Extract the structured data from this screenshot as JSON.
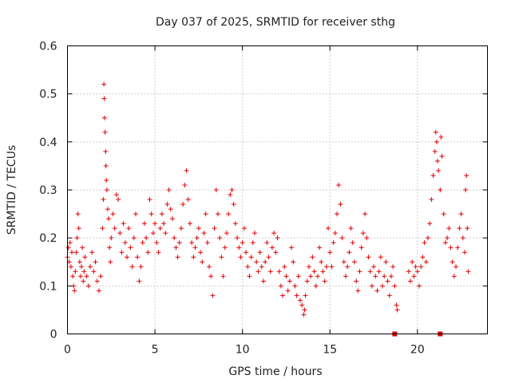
{
  "chart_data": {
    "type": "scatter",
    "title": "Day 037 of 2025, SRMTID for receiver sthg",
    "xlabel": "GPS time / hours",
    "ylabel": "SRMTID / TECUs",
    "xlim": [
      0,
      24
    ],
    "ylim": [
      0,
      0.6
    ],
    "xticks": [
      0,
      5,
      10,
      15,
      20
    ],
    "xtick_labels": [
      "0",
      "5",
      "10",
      "15",
      "20"
    ],
    "yticks": [
      0,
      0.1,
      0.2,
      0.3,
      0.4,
      0.5,
      0.6
    ],
    "ytick_labels": [
      "0",
      "0.1",
      "0.2",
      "0.3",
      "0.4",
      "0.5",
      "0.6"
    ],
    "grid": true,
    "marker": "+",
    "color": "#e00000",
    "gap_markers": {
      "x": [
        18.7,
        21.3
      ],
      "y": 0
    },
    "series": [
      {
        "name": "SRMTID",
        "points": [
          [
            0.0,
            0.16
          ],
          [
            0.05,
            0.18
          ],
          [
            0.1,
            0.15
          ],
          [
            0.15,
            0.19
          ],
          [
            0.2,
            0.14
          ],
          [
            0.25,
            0.17
          ],
          [
            0.3,
            0.12
          ],
          [
            0.35,
            0.1
          ],
          [
            0.4,
            0.09
          ],
          [
            0.45,
            0.13
          ],
          [
            0.5,
            0.17
          ],
          [
            0.55,
            0.2
          ],
          [
            0.6,
            0.25
          ],
          [
            0.65,
            0.22
          ],
          [
            0.7,
            0.15
          ],
          [
            0.75,
            0.12
          ],
          [
            0.8,
            0.14
          ],
          [
            0.85,
            0.18
          ],
          [
            0.9,
            0.11
          ],
          [
            0.95,
            0.13
          ],
          [
            1.0,
            0.16
          ],
          [
            1.1,
            0.12
          ],
          [
            1.2,
            0.1
          ],
          [
            1.3,
            0.14
          ],
          [
            1.4,
            0.17
          ],
          [
            1.5,
            0.13
          ],
          [
            1.6,
            0.15
          ],
          [
            1.7,
            0.11
          ],
          [
            1.8,
            0.09
          ],
          [
            1.9,
            0.12
          ],
          [
            2.0,
            0.22
          ],
          [
            2.05,
            0.28
          ],
          [
            2.08,
            0.52
          ],
          [
            2.1,
            0.49
          ],
          [
            2.12,
            0.45
          ],
          [
            2.15,
            0.42
          ],
          [
            2.18,
            0.38
          ],
          [
            2.2,
            0.35
          ],
          [
            2.22,
            0.32
          ],
          [
            2.25,
            0.3
          ],
          [
            2.3,
            0.26
          ],
          [
            2.35,
            0.24
          ],
          [
            2.4,
            0.18
          ],
          [
            2.45,
            0.15
          ],
          [
            2.5,
            0.2
          ],
          [
            2.6,
            0.25
          ],
          [
            2.7,
            0.22
          ],
          [
            2.8,
            0.29
          ],
          [
            2.9,
            0.28
          ],
          [
            3.0,
            0.21
          ],
          [
            3.1,
            0.17
          ],
          [
            3.2,
            0.23
          ],
          [
            3.3,
            0.19
          ],
          [
            3.4,
            0.16
          ],
          [
            3.5,
            0.22
          ],
          [
            3.6,
            0.18
          ],
          [
            3.7,
            0.14
          ],
          [
            3.8,
            0.2
          ],
          [
            3.9,
            0.25
          ],
          [
            4.0,
            0.16
          ],
          [
            4.1,
            0.11
          ],
          [
            4.2,
            0.14
          ],
          [
            4.3,
            0.19
          ],
          [
            4.4,
            0.23
          ],
          [
            4.5,
            0.2
          ],
          [
            4.6,
            0.17
          ],
          [
            4.7,
            0.28
          ],
          [
            4.8,
            0.25
          ],
          [
            4.9,
            0.21
          ],
          [
            5.0,
            0.23
          ],
          [
            5.1,
            0.19
          ],
          [
            5.2,
            0.17
          ],
          [
            5.3,
            0.22
          ],
          [
            5.4,
            0.25
          ],
          [
            5.5,
            0.23
          ],
          [
            5.6,
            0.21
          ],
          [
            5.7,
            0.27
          ],
          [
            5.8,
            0.3
          ],
          [
            5.9,
            0.26
          ],
          [
            6.0,
            0.24
          ],
          [
            6.1,
            0.2
          ],
          [
            6.2,
            0.18
          ],
          [
            6.3,
            0.16
          ],
          [
            6.4,
            0.19
          ],
          [
            6.5,
            0.22
          ],
          [
            6.6,
            0.27
          ],
          [
            6.7,
            0.31
          ],
          [
            6.8,
            0.34
          ],
          [
            6.9,
            0.28
          ],
          [
            7.0,
            0.23
          ],
          [
            7.1,
            0.19
          ],
          [
            7.2,
            0.16
          ],
          [
            7.3,
            0.18
          ],
          [
            7.4,
            0.2
          ],
          [
            7.5,
            0.22
          ],
          [
            7.6,
            0.17
          ],
          [
            7.7,
            0.15
          ],
          [
            7.8,
            0.21
          ],
          [
            7.9,
            0.25
          ],
          [
            8.0,
            0.19
          ],
          [
            8.1,
            0.14
          ],
          [
            8.2,
            0.12
          ],
          [
            8.3,
            0.08
          ],
          [
            8.4,
            0.22
          ],
          [
            8.5,
            0.3
          ],
          [
            8.6,
            0.25
          ],
          [
            8.7,
            0.2
          ],
          [
            8.8,
            0.16
          ],
          [
            8.9,
            0.12
          ],
          [
            9.0,
            0.18
          ],
          [
            9.1,
            0.21
          ],
          [
            9.2,
            0.25
          ],
          [
            9.3,
            0.29
          ],
          [
            9.4,
            0.3
          ],
          [
            9.5,
            0.27
          ],
          [
            9.6,
            0.23
          ],
          [
            9.7,
            0.2
          ],
          [
            9.8,
            0.18
          ],
          [
            9.9,
            0.16
          ],
          [
            10.0,
            0.19
          ],
          [
            10.1,
            0.22
          ],
          [
            10.2,
            0.17
          ],
          [
            10.3,
            0.14
          ],
          [
            10.4,
            0.12
          ],
          [
            10.5,
            0.16
          ],
          [
            10.6,
            0.19
          ],
          [
            10.7,
            0.21
          ],
          [
            10.8,
            0.15
          ],
          [
            10.9,
            0.13
          ],
          [
            11.0,
            0.17
          ],
          [
            11.1,
            0.14
          ],
          [
            11.2,
            0.11
          ],
          [
            11.3,
            0.15
          ],
          [
            11.4,
            0.19
          ],
          [
            11.5,
            0.16
          ],
          [
            11.6,
            0.13
          ],
          [
            11.7,
            0.18
          ],
          [
            11.8,
            0.21
          ],
          [
            11.9,
            0.17
          ],
          [
            12.0,
            0.2
          ],
          [
            12.1,
            0.13
          ],
          [
            12.2,
            0.1
          ],
          [
            12.3,
            0.08
          ],
          [
            12.4,
            0.14
          ],
          [
            12.5,
            0.12
          ],
          [
            12.6,
            0.09
          ],
          [
            12.7,
            0.11
          ],
          [
            12.8,
            0.18
          ],
          [
            12.9,
            0.15
          ],
          [
            13.0,
            0.1
          ],
          [
            13.1,
            0.08
          ],
          [
            13.2,
            0.12
          ],
          [
            13.3,
            0.07
          ],
          [
            13.4,
            0.06
          ],
          [
            13.5,
            0.04
          ],
          [
            13.55,
            0.05
          ],
          [
            13.6,
            0.08
          ],
          [
            13.7,
            0.11
          ],
          [
            13.8,
            0.14
          ],
          [
            13.9,
            0.12
          ],
          [
            14.0,
            0.16
          ],
          [
            14.1,
            0.13
          ],
          [
            14.2,
            0.1
          ],
          [
            14.3,
            0.12
          ],
          [
            14.4,
            0.18
          ],
          [
            14.5,
            0.15
          ],
          [
            14.6,
            0.13
          ],
          [
            14.7,
            0.11
          ],
          [
            14.8,
            0.14
          ],
          [
            14.9,
            0.22
          ],
          [
            15.0,
            0.17
          ],
          [
            15.1,
            0.14
          ],
          [
            15.2,
            0.19
          ],
          [
            15.3,
            0.21
          ],
          [
            15.4,
            0.25
          ],
          [
            15.5,
            0.31
          ],
          [
            15.6,
            0.27
          ],
          [
            15.7,
            0.2
          ],
          [
            15.8,
            0.15
          ],
          [
            15.9,
            0.12
          ],
          [
            16.0,
            0.14
          ],
          [
            16.1,
            0.17
          ],
          [
            16.2,
            0.22
          ],
          [
            16.3,
            0.19
          ],
          [
            16.4,
            0.15
          ],
          [
            16.5,
            0.11
          ],
          [
            16.6,
            0.09
          ],
          [
            16.7,
            0.13
          ],
          [
            16.8,
            0.18
          ],
          [
            16.9,
            0.21
          ],
          [
            17.0,
            0.25
          ],
          [
            17.1,
            0.2
          ],
          [
            17.2,
            0.16
          ],
          [
            17.3,
            0.13
          ],
          [
            17.4,
            0.1
          ],
          [
            17.5,
            0.14
          ],
          [
            17.6,
            0.12
          ],
          [
            17.7,
            0.09
          ],
          [
            17.8,
            0.13
          ],
          [
            17.9,
            0.16
          ],
          [
            18.0,
            0.1
          ],
          [
            18.1,
            0.12
          ],
          [
            18.2,
            0.15
          ],
          [
            18.3,
            0.11
          ],
          [
            18.4,
            0.08
          ],
          [
            18.5,
            0.12
          ],
          [
            18.6,
            0.14
          ],
          [
            18.7,
            0.1
          ],
          [
            18.8,
            0.06
          ],
          [
            18.85,
            0.05
          ],
          [
            19.5,
            0.13
          ],
          [
            19.6,
            0.11
          ],
          [
            19.7,
            0.15
          ],
          [
            19.8,
            0.12
          ],
          [
            19.9,
            0.14
          ],
          [
            20.0,
            0.13
          ],
          [
            20.1,
            0.1
          ],
          [
            20.2,
            0.14
          ],
          [
            20.3,
            0.16
          ],
          [
            20.4,
            0.19
          ],
          [
            20.5,
            0.15
          ],
          [
            20.6,
            0.2
          ],
          [
            20.7,
            0.23
          ],
          [
            20.8,
            0.28
          ],
          [
            20.9,
            0.33
          ],
          [
            21.0,
            0.38
          ],
          [
            21.05,
            0.42
          ],
          [
            21.1,
            0.4
          ],
          [
            21.15,
            0.36
          ],
          [
            21.2,
            0.34
          ],
          [
            21.3,
            0.3
          ],
          [
            21.35,
            0.41
          ],
          [
            21.4,
            0.37
          ],
          [
            21.5,
            0.25
          ],
          [
            21.6,
            0.19
          ],
          [
            21.7,
            0.2
          ],
          [
            21.8,
            0.22
          ],
          [
            21.9,
            0.18
          ],
          [
            22.0,
            0.15
          ],
          [
            22.1,
            0.12
          ],
          [
            22.2,
            0.14
          ],
          [
            22.3,
            0.18
          ],
          [
            22.4,
            0.22
          ],
          [
            22.5,
            0.25
          ],
          [
            22.6,
            0.2
          ],
          [
            22.7,
            0.17
          ],
          [
            22.75,
            0.3
          ],
          [
            22.8,
            0.33
          ],
          [
            22.85,
            0.22
          ],
          [
            22.9,
            0.13
          ]
        ]
      }
    ]
  }
}
